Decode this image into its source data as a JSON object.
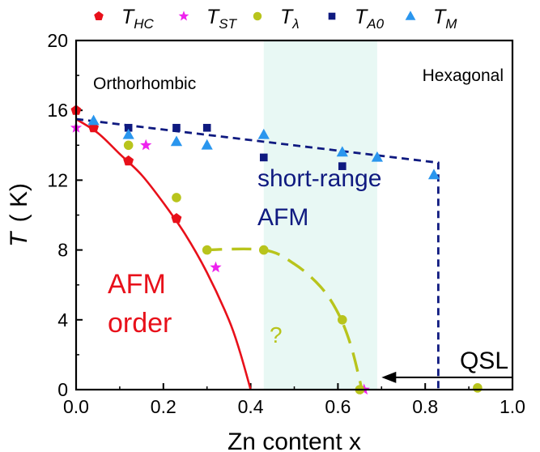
{
  "chart_data": {
    "type": "scatter",
    "xlabel": "Zn content  x",
    "ylabel": "T",
    "ylabel_unit": "( K)",
    "xlim": [
      0.0,
      1.0
    ],
    "ylim": [
      0,
      20
    ],
    "x_ticks": [
      "0.0",
      "0.2",
      "0.4",
      "0.6",
      "0.8",
      "1.0"
    ],
    "y_ticks": [
      "0",
      "4",
      "8",
      "12",
      "16",
      "20"
    ],
    "legend_position": "top",
    "shaded_region": {
      "x": [
        0.43,
        0.69
      ],
      "color": "#e8f8f4"
    },
    "colors": {
      "T_HC": "#e8101a",
      "T_ST": "#ee22ee",
      "T_lambda": "#b8c41c",
      "T_A0": "#0f1a80",
      "T_M": "#2a96ee",
      "afm_line": "#e8101a",
      "lambda_dash": "#b8c41c",
      "sr_dash": "#0f1a80"
    },
    "series": [
      {
        "name": "T_HC",
        "legend_main": "T",
        "legend_sub": "HC",
        "marker": "pentagon",
        "points": [
          [
            0.0,
            16.0
          ],
          [
            0.04,
            15.0
          ],
          [
            0.12,
            13.1
          ],
          [
            0.23,
            9.8
          ]
        ]
      },
      {
        "name": "T_ST",
        "legend_main": "T",
        "legend_sub": "ST",
        "marker": "star",
        "points": [
          [
            0.0,
            15.0
          ],
          [
            0.16,
            14.0
          ],
          [
            0.32,
            7.0
          ],
          [
            0.66,
            0.0
          ]
        ]
      },
      {
        "name": "T_lambda",
        "legend_main": "T",
        "legend_sub": "λ",
        "marker": "circle",
        "points": [
          [
            0.12,
            14.0
          ],
          [
            0.23,
            11.0
          ],
          [
            0.3,
            8.0
          ],
          [
            0.43,
            8.0
          ],
          [
            0.61,
            4.0
          ],
          [
            0.65,
            0.0
          ],
          [
            0.92,
            0.1
          ]
        ]
      },
      {
        "name": "T_A0",
        "legend_main": "T",
        "legend_sub": "A0",
        "marker": "square",
        "points": [
          [
            0.12,
            15.0
          ],
          [
            0.23,
            15.0
          ],
          [
            0.3,
            15.0
          ],
          [
            0.43,
            13.3
          ],
          [
            0.61,
            12.8
          ]
        ]
      },
      {
        "name": "T_M",
        "legend_main": "T",
        "legend_sub": "M",
        "marker": "triangle",
        "points": [
          [
            0.04,
            15.4
          ],
          [
            0.12,
            14.6
          ],
          [
            0.23,
            14.2
          ],
          [
            0.3,
            14.0
          ],
          [
            0.43,
            14.6
          ],
          [
            0.61,
            13.6
          ],
          [
            0.69,
            13.3
          ],
          [
            0.82,
            12.3
          ]
        ]
      }
    ],
    "afm_boundary": [
      [
        0.0,
        15.5
      ],
      [
        0.05,
        14.7
      ],
      [
        0.1,
        13.5
      ],
      [
        0.15,
        12.3
      ],
      [
        0.2,
        10.7
      ],
      [
        0.25,
        8.9
      ],
      [
        0.3,
        6.7
      ],
      [
        0.35,
        4.0
      ],
      [
        0.375,
        2.2
      ],
      [
        0.4,
        0.0
      ]
    ],
    "lambda_boundary": [
      [
        0.29,
        8.0
      ],
      [
        0.43,
        8.0
      ],
      [
        0.5,
        7.2
      ],
      [
        0.56,
        5.9
      ],
      [
        0.6,
        4.4
      ],
      [
        0.63,
        2.5
      ],
      [
        0.655,
        0.0
      ]
    ],
    "short_range_boundary": [
      [
        0.0,
        15.5
      ],
      [
        0.83,
        13.0
      ],
      [
        0.83,
        0.0
      ]
    ],
    "qsl_arrow": {
      "from": [
        1.0,
        0.7
      ],
      "to": [
        0.7,
        0.7
      ]
    },
    "annotations": {
      "orthorhombic": "Orthorhombic",
      "hexagonal": "Hexagonal",
      "short_range_line1": "short-range",
      "short_range_line2": "AFM",
      "afm_line1": "AFM",
      "afm_line2": "order",
      "question": "?",
      "qsl": "QSL"
    }
  }
}
